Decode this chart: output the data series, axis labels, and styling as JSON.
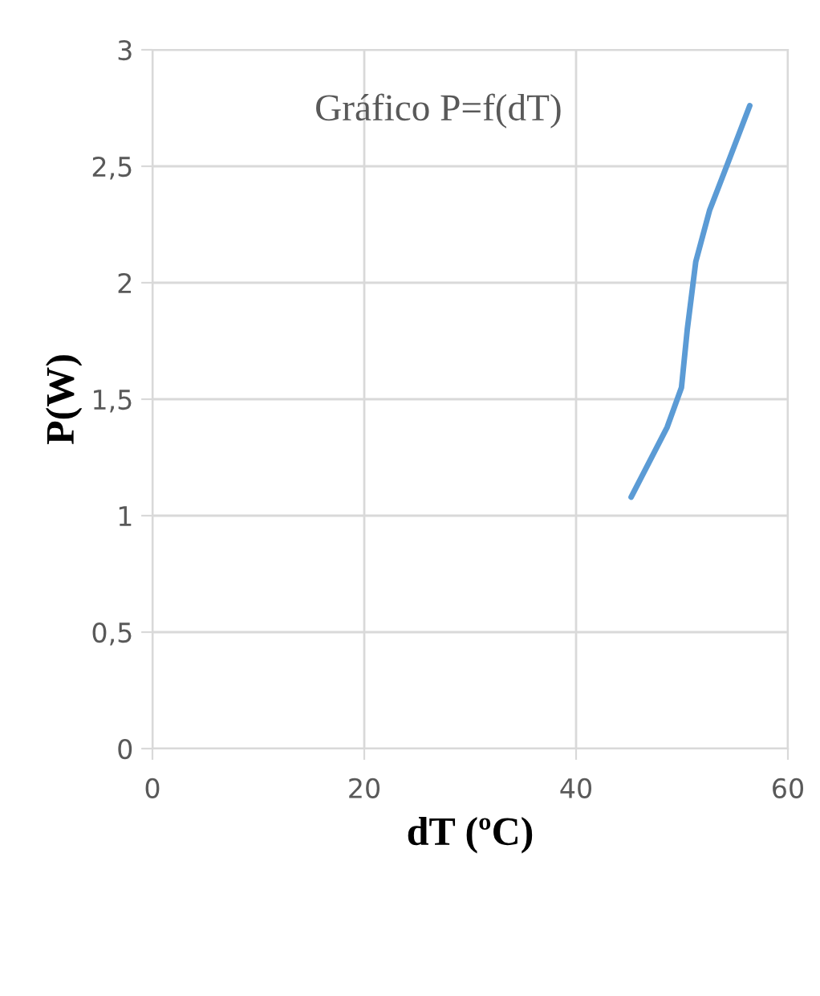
{
  "chart_data": {
    "type": "line",
    "title": "Gráfico P=f(dT)",
    "xlabel": "dT (ºC)",
    "ylabel": "P(W)",
    "series": [
      {
        "color": "#5b9bd5",
        "x": [
          45.2,
          48.6,
          49.95,
          50.5,
          51.3,
          52.6,
          54.3,
          56.4
        ],
        "values": [
          1.08,
          1.38,
          1.55,
          1.8,
          2.09,
          2.31,
          2.51,
          2.76
        ]
      }
    ],
    "xlim": [
      0,
      60
    ],
    "xticks": [
      0,
      20,
      40,
      60
    ],
    "ylim": [
      0,
      3
    ],
    "yticks": [
      0,
      {
        "value": 0.5,
        "label": "0,5"
      },
      1,
      {
        "value": 1.5,
        "label": "1,5"
      },
      2,
      {
        "value": 2.5,
        "label": "2,5"
      },
      3
    ],
    "grid": true,
    "legend": false,
    "marker": "none",
    "line_style": "solid"
  }
}
